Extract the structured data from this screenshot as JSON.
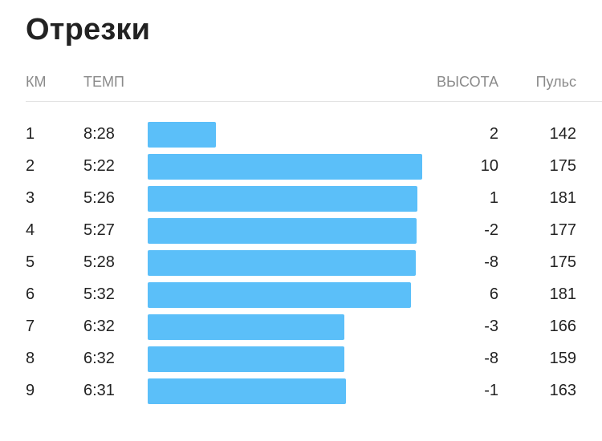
{
  "title": "Отрезки",
  "columns": {
    "km": "КМ",
    "pace": "ТЕМП",
    "elevation": "ВЫСОТА",
    "heart_rate": "Пульс"
  },
  "bar_color": "#5bbff9",
  "splits": [
    {
      "km": "1",
      "pace": "8:28",
      "pace_seconds": 508,
      "elevation": "2",
      "heart_rate": "142"
    },
    {
      "km": "2",
      "pace": "5:22",
      "pace_seconds": 322,
      "elevation": "10",
      "heart_rate": "175"
    },
    {
      "km": "3",
      "pace": "5:26",
      "pace_seconds": 326,
      "elevation": "1",
      "heart_rate": "181"
    },
    {
      "km": "4",
      "pace": "5:27",
      "pace_seconds": 327,
      "elevation": "-2",
      "heart_rate": "177"
    },
    {
      "km": "5",
      "pace": "5:28",
      "pace_seconds": 328,
      "elevation": "-8",
      "heart_rate": "175"
    },
    {
      "km": "6",
      "pace": "5:32",
      "pace_seconds": 332,
      "elevation": "6",
      "heart_rate": "181"
    },
    {
      "km": "7",
      "pace": "6:32",
      "pace_seconds": 392,
      "elevation": "-3",
      "heart_rate": "166"
    },
    {
      "km": "8",
      "pace": "6:32",
      "pace_seconds": 392,
      "elevation": "-8",
      "heart_rate": "159"
    },
    {
      "km": "9",
      "pace": "6:31",
      "pace_seconds": 391,
      "elevation": "-1",
      "heart_rate": "163"
    }
  ]
}
